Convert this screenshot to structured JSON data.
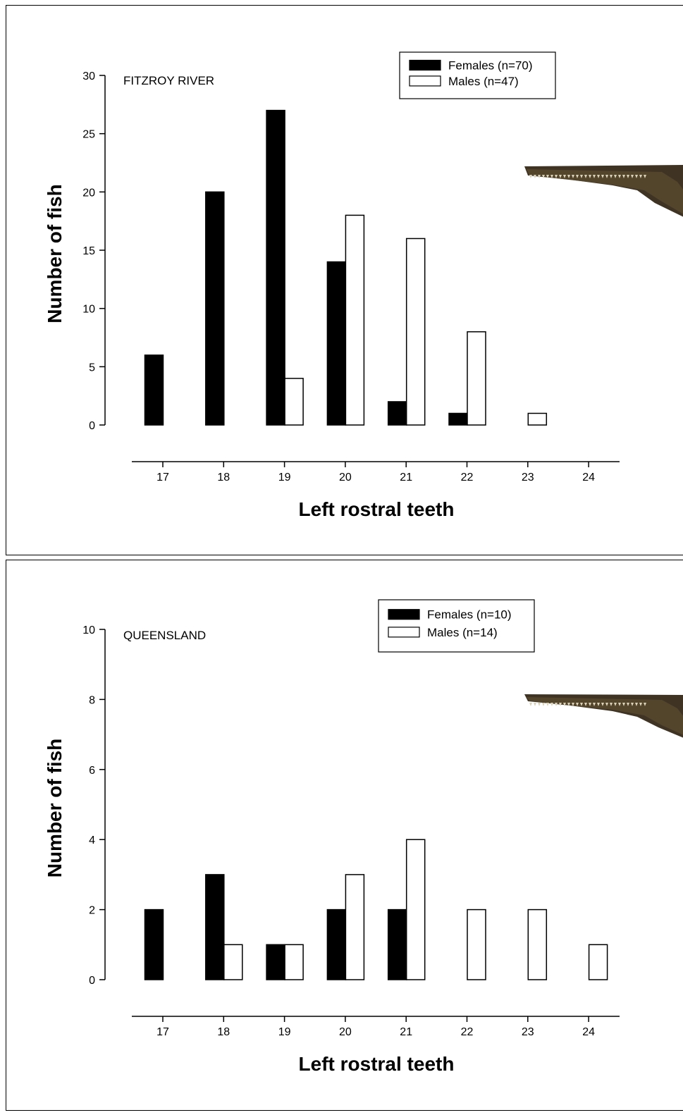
{
  "chart_data": [
    {
      "type": "bar",
      "region_label": "FITZROY RIVER",
      "xlabel": "Left rostral teeth",
      "ylabel": "Number of fish",
      "ylim": [
        0,
        30
      ],
      "yticks": [
        0,
        5,
        10,
        15,
        20,
        25,
        30
      ],
      "categories": [
        "17",
        "18",
        "19",
        "20",
        "21",
        "22",
        "23",
        "24"
      ],
      "series": [
        {
          "name": "Females (n=70)",
          "color": "#000000",
          "values": [
            6,
            20,
            27,
            14,
            2,
            1,
            0,
            0
          ]
        },
        {
          "name": "Males (n=47)",
          "color": "#ffffff",
          "values": [
            0,
            0,
            4,
            18,
            16,
            8,
            1,
            0
          ]
        }
      ],
      "legend_position": "top-right",
      "grid": false,
      "illustration": "sawfish-rostrum-image"
    },
    {
      "type": "bar",
      "region_label": "QUEENSLAND",
      "xlabel": "Left rostral teeth",
      "ylabel": "Number of fish",
      "ylim": [
        0,
        10
      ],
      "yticks": [
        0,
        2,
        4,
        6,
        8,
        10
      ],
      "categories": [
        "17",
        "18",
        "19",
        "20",
        "21",
        "22",
        "23",
        "24"
      ],
      "series": [
        {
          "name": "Females (n=10)",
          "color": "#000000",
          "values": [
            2,
            3,
            1,
            2,
            2,
            0,
            0,
            0
          ]
        },
        {
          "name": "Males (n=14)",
          "color": "#ffffff",
          "values": [
            0,
            1,
            1,
            3,
            4,
            2,
            2,
            1
          ]
        }
      ],
      "legend_position": "top-right",
      "grid": false,
      "illustration": "sawfish-rostrum-image"
    }
  ]
}
